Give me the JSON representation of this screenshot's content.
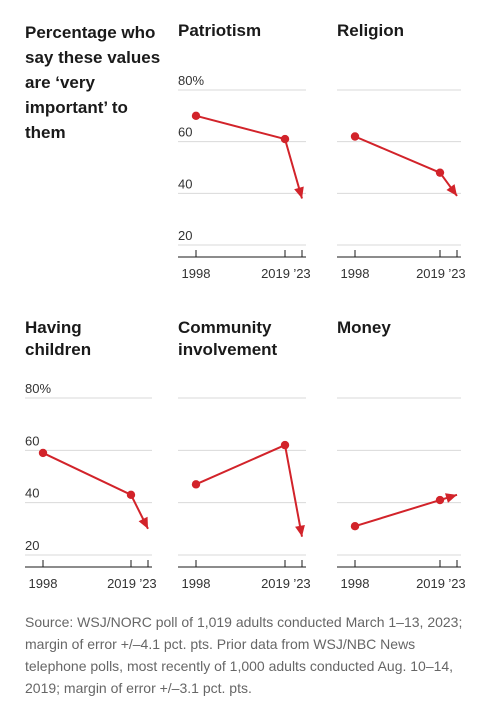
{
  "headline": "Percentage who say these values are ‘very important’ to them",
  "source": "Source: WSJ/NORC poll of 1,019 adults conducted March 1–13, 2023; margin of error +/–4.1 pct. pts. Prior data from WSJ/NBC News telephone polls, most recently of 1,000 adults conducted Aug. 10–14, 2019; margin of error +/–3.1 pct. pts.",
  "colors": {
    "series": "#d2232a",
    "grid": "#d9d9d9",
    "axis": "#1a1a1a"
  },
  "chart_data": [
    {
      "type": "line",
      "title": [
        "Patriotism"
      ],
      "x": [
        "1998",
        "2019",
        "2023"
      ],
      "x_tick_labels": [
        "1998",
        "2019",
        "’23"
      ],
      "values": [
        70,
        61,
        38
      ],
      "y_ticks": [
        20,
        40,
        60,
        80
      ],
      "y_tick_labels": [
        "20",
        "40",
        "60",
        "80%"
      ],
      "ylim": [
        20,
        80
      ],
      "grid": true,
      "last_point_marker": "arrow"
    },
    {
      "type": "line",
      "title": [
        "Religion"
      ],
      "x": [
        "1998",
        "2019",
        "2023"
      ],
      "x_tick_labels": [
        "1998",
        "2019",
        "’23"
      ],
      "values": [
        62,
        48,
        39
      ],
      "ylim": [
        20,
        80
      ],
      "grid": true,
      "last_point_marker": "arrow"
    },
    {
      "type": "line",
      "title": [
        "Having",
        "children"
      ],
      "x": [
        "1998",
        "2019",
        "2023"
      ],
      "x_tick_labels": [
        "1998",
        "2019",
        "’23"
      ],
      "values": [
        59,
        43,
        30
      ],
      "y_ticks": [
        20,
        40,
        60,
        80
      ],
      "y_tick_labels": [
        "20",
        "40",
        "60",
        "80%"
      ],
      "ylim": [
        20,
        80
      ],
      "grid": true,
      "last_point_marker": "arrow"
    },
    {
      "type": "line",
      "title": [
        "Community",
        "involvement"
      ],
      "x": [
        "1998",
        "2019",
        "2023"
      ],
      "x_tick_labels": [
        "1998",
        "2019",
        "’23"
      ],
      "values": [
        47,
        62,
        27
      ],
      "ylim": [
        20,
        80
      ],
      "grid": true,
      "last_point_marker": "arrow"
    },
    {
      "type": "line",
      "title": [
        "Money"
      ],
      "x": [
        "1998",
        "2019",
        "2023"
      ],
      "x_tick_labels": [
        "1998",
        "2019",
        "’23"
      ],
      "values": [
        31,
        41,
        43
      ],
      "ylim": [
        20,
        80
      ],
      "grid": true,
      "last_point_marker": "arrow"
    }
  ]
}
